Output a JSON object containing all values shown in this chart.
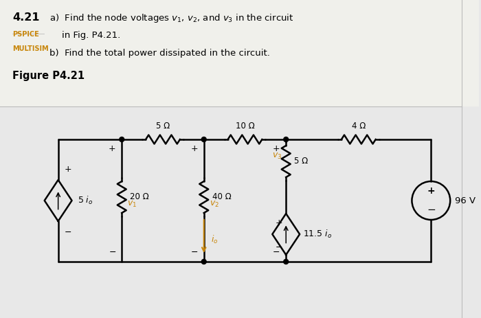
{
  "title_number": "4.21",
  "part_a_line1": "a)  Find the node voltages $v_1$, $v_2$, and $v_3$ in the circuit",
  "part_a_line2": "in Fig. P4.21.",
  "part_b": "b)  Find the total power dissipated in the circuit.",
  "pspice_label": "PSPICE",
  "multisim_label": "MULTISIM",
  "figure_label": "Figure P4.21",
  "bg_color": "#e8e8e8",
  "text_color": "#000000",
  "orange_color": "#c8860a",
  "r_top": [
    "5 Ω",
    "10 Ω",
    "4 Ω"
  ],
  "r_vert": [
    "20 Ω",
    "40 Ω",
    "5 Ω"
  ],
  "source_current_label": "5 $i_o$",
  "source_voltage_label": "96 V",
  "dep_current_label": "11.5 $i_o$",
  "v1_label": "$v_1$",
  "v2_label": "$v_2$",
  "v3_label": "$v_3$",
  "io_label": "$i_o$",
  "io_arrow_color": "#c8860a",
  "node_label_color": "#c8860a",
  "lw": 1.8
}
